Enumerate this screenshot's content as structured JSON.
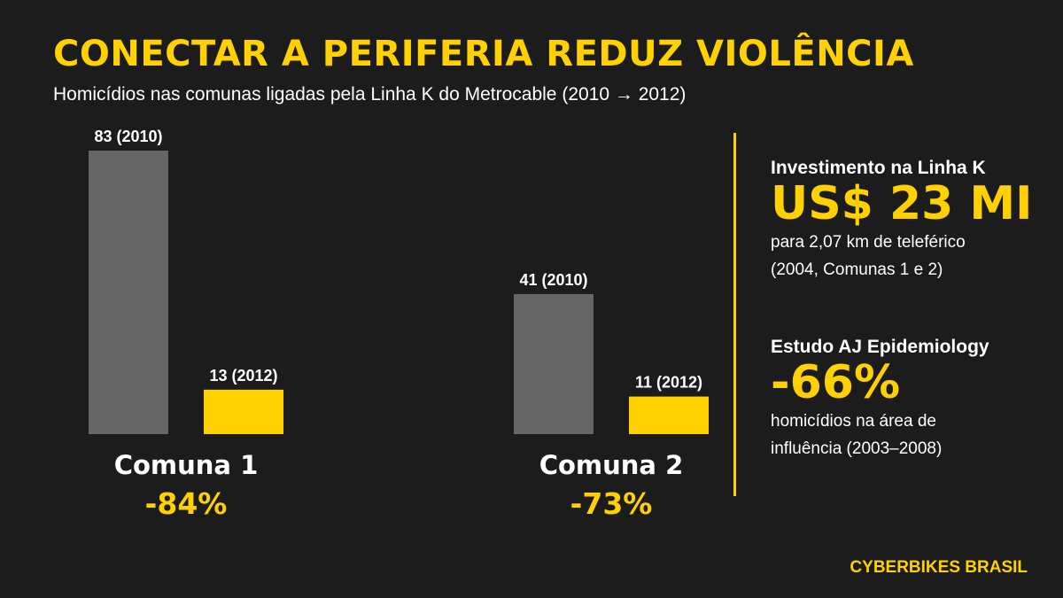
{
  "header": {
    "title": "CONECTAR A PERIFERIA REDUZ VIOLÊNCIA",
    "subtitle": "Homicídios nas comunas ligadas pela Linha K do Metrocable (2010 → 2012)"
  },
  "chart_data": {
    "type": "bar",
    "title": "CONECTAR A PERIFERIA REDUZ VIOLÊNCIA",
    "subtitle": "Homicídios nas comunas ligadas pela Linha K do Metrocable (2010 → 2012)",
    "categories": [
      "Comuna 1",
      "Comuna 2"
    ],
    "series": [
      {
        "name": "2010",
        "values": [
          83,
          41
        ],
        "color": "#666666",
        "labels": [
          "83 (2010)",
          "41 (2010)"
        ]
      },
      {
        "name": "2012",
        "values": [
          13,
          11
        ],
        "color": "#ffd100",
        "labels": [
          "13 (2012)",
          "11 (2012)"
        ]
      }
    ],
    "changes": [
      "-84%",
      "-73%"
    ],
    "ylim": [
      0,
      83
    ],
    "grid": false,
    "legend": "none"
  },
  "sidebar": {
    "investment": {
      "heading": "Investimento na Linha K",
      "value": "US$ 23 MI",
      "note_line1": "para 2,07 km de teleférico",
      "note_line2": "(2004, Comunas 1 e 2)"
    },
    "study": {
      "heading": "Estudo AJ Epidemiology",
      "value": "-66%",
      "note_line1": "homicídios na área de",
      "note_line2": "influência (2003–2008)"
    }
  },
  "footer": {
    "brand": "CYBERBIKES BRASIL"
  },
  "colors": {
    "background": "#1c1c1c",
    "accent": "#ffd100",
    "bar_2010": "#666666",
    "text": "#ffffff"
  }
}
